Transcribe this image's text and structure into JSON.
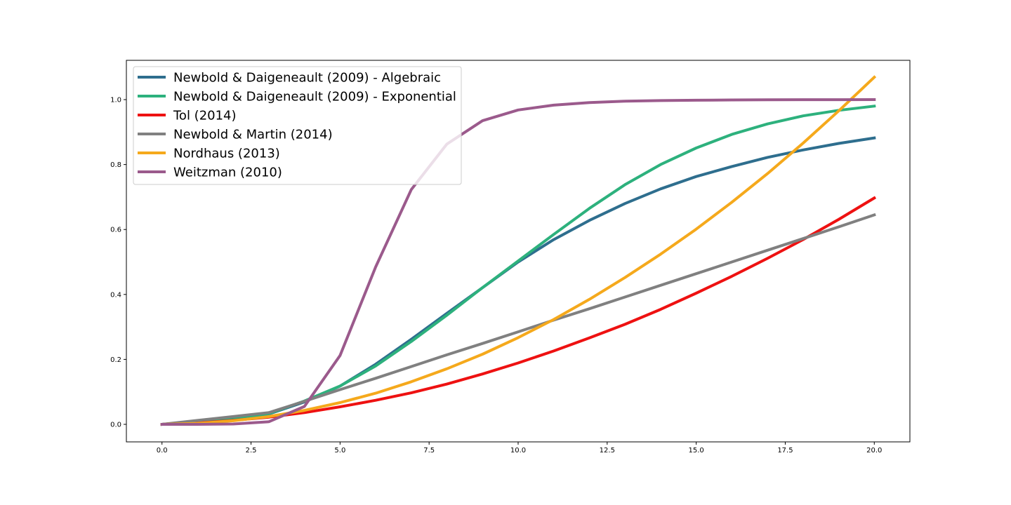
{
  "chart_data": {
    "type": "line",
    "title": "",
    "xlabel": "",
    "ylabel": "",
    "xlim": [
      -1,
      21
    ],
    "ylim": [
      -0.054,
      1.121
    ],
    "grid": false,
    "legend_position": "top-left",
    "x_ticks": [
      0.0,
      2.5,
      5.0,
      7.5,
      10.0,
      12.5,
      15.0,
      17.5,
      20.0
    ],
    "x_tick_labels": [
      "0.0",
      "2.5",
      "5.0",
      "7.5",
      "10.0",
      "12.5",
      "15.0",
      "17.5",
      "20.0"
    ],
    "y_ticks": [
      0.0,
      0.2,
      0.4,
      0.6,
      0.8,
      1.0
    ],
    "y_tick_labels": [
      "0.0",
      "0.2",
      "0.4",
      "0.6",
      "0.8",
      "1.0"
    ],
    "x": [
      0,
      1,
      2,
      3,
      4,
      5,
      6,
      7,
      8,
      9,
      10,
      11,
      12,
      13,
      14,
      15,
      16,
      17,
      18,
      19,
      20
    ],
    "series": [
      {
        "name": "Newbold & Daigeneault (2009) - Algebraic",
        "color": "#2e6e8e",
        "values": [
          0.0,
          0.009,
          0.019,
          0.032,
          0.069,
          0.118,
          0.185,
          0.262,
          0.342,
          0.421,
          0.5,
          0.569,
          0.628,
          0.68,
          0.725,
          0.763,
          0.794,
          0.822,
          0.845,
          0.865,
          0.882
        ]
      },
      {
        "name": "Newbold & Daigeneault (2009) - Exponential",
        "color": "#2db17d",
        "values": [
          0.0,
          0.009,
          0.019,
          0.033,
          0.072,
          0.118,
          0.18,
          0.255,
          0.336,
          0.421,
          0.503,
          0.585,
          0.665,
          0.738,
          0.8,
          0.851,
          0.893,
          0.925,
          0.95,
          0.967,
          0.98
        ]
      },
      {
        "name": "Tol (2014)",
        "color": "#ee1111",
        "values": [
          0.0,
          0.004,
          0.012,
          0.022,
          0.036,
          0.054,
          0.074,
          0.097,
          0.124,
          0.155,
          0.189,
          0.226,
          0.266,
          0.308,
          0.354,
          0.404,
          0.456,
          0.511,
          0.569,
          0.631,
          0.697
        ]
      },
      {
        "name": "Newbold & Martin (2014)",
        "color": "#808080",
        "values": [
          0.0,
          0.012,
          0.024,
          0.036,
          0.071,
          0.107,
          0.142,
          0.178,
          0.214,
          0.249,
          0.285,
          0.321,
          0.356,
          0.392,
          0.428,
          0.464,
          0.5,
          0.536,
          0.572,
          0.608,
          0.645
        ]
      },
      {
        "name": "Nordhaus (2013)",
        "color": "#f5a91c",
        "values": [
          0.0,
          0.003,
          0.011,
          0.024,
          0.043,
          0.067,
          0.096,
          0.131,
          0.171,
          0.216,
          0.267,
          0.323,
          0.385,
          0.452,
          0.524,
          0.601,
          0.684,
          0.772,
          0.866,
          0.965,
          1.069
        ]
      },
      {
        "name": "Weitzman (2010)",
        "color": "#9b5a8c",
        "values": [
          0.0,
          0.0,
          0.001,
          0.008,
          0.055,
          0.212,
          0.485,
          0.723,
          0.863,
          0.935,
          0.968,
          0.983,
          0.991,
          0.995,
          0.997,
          0.998,
          0.999,
          0.9995,
          0.9998,
          0.9999,
          1.0
        ]
      }
    ]
  }
}
